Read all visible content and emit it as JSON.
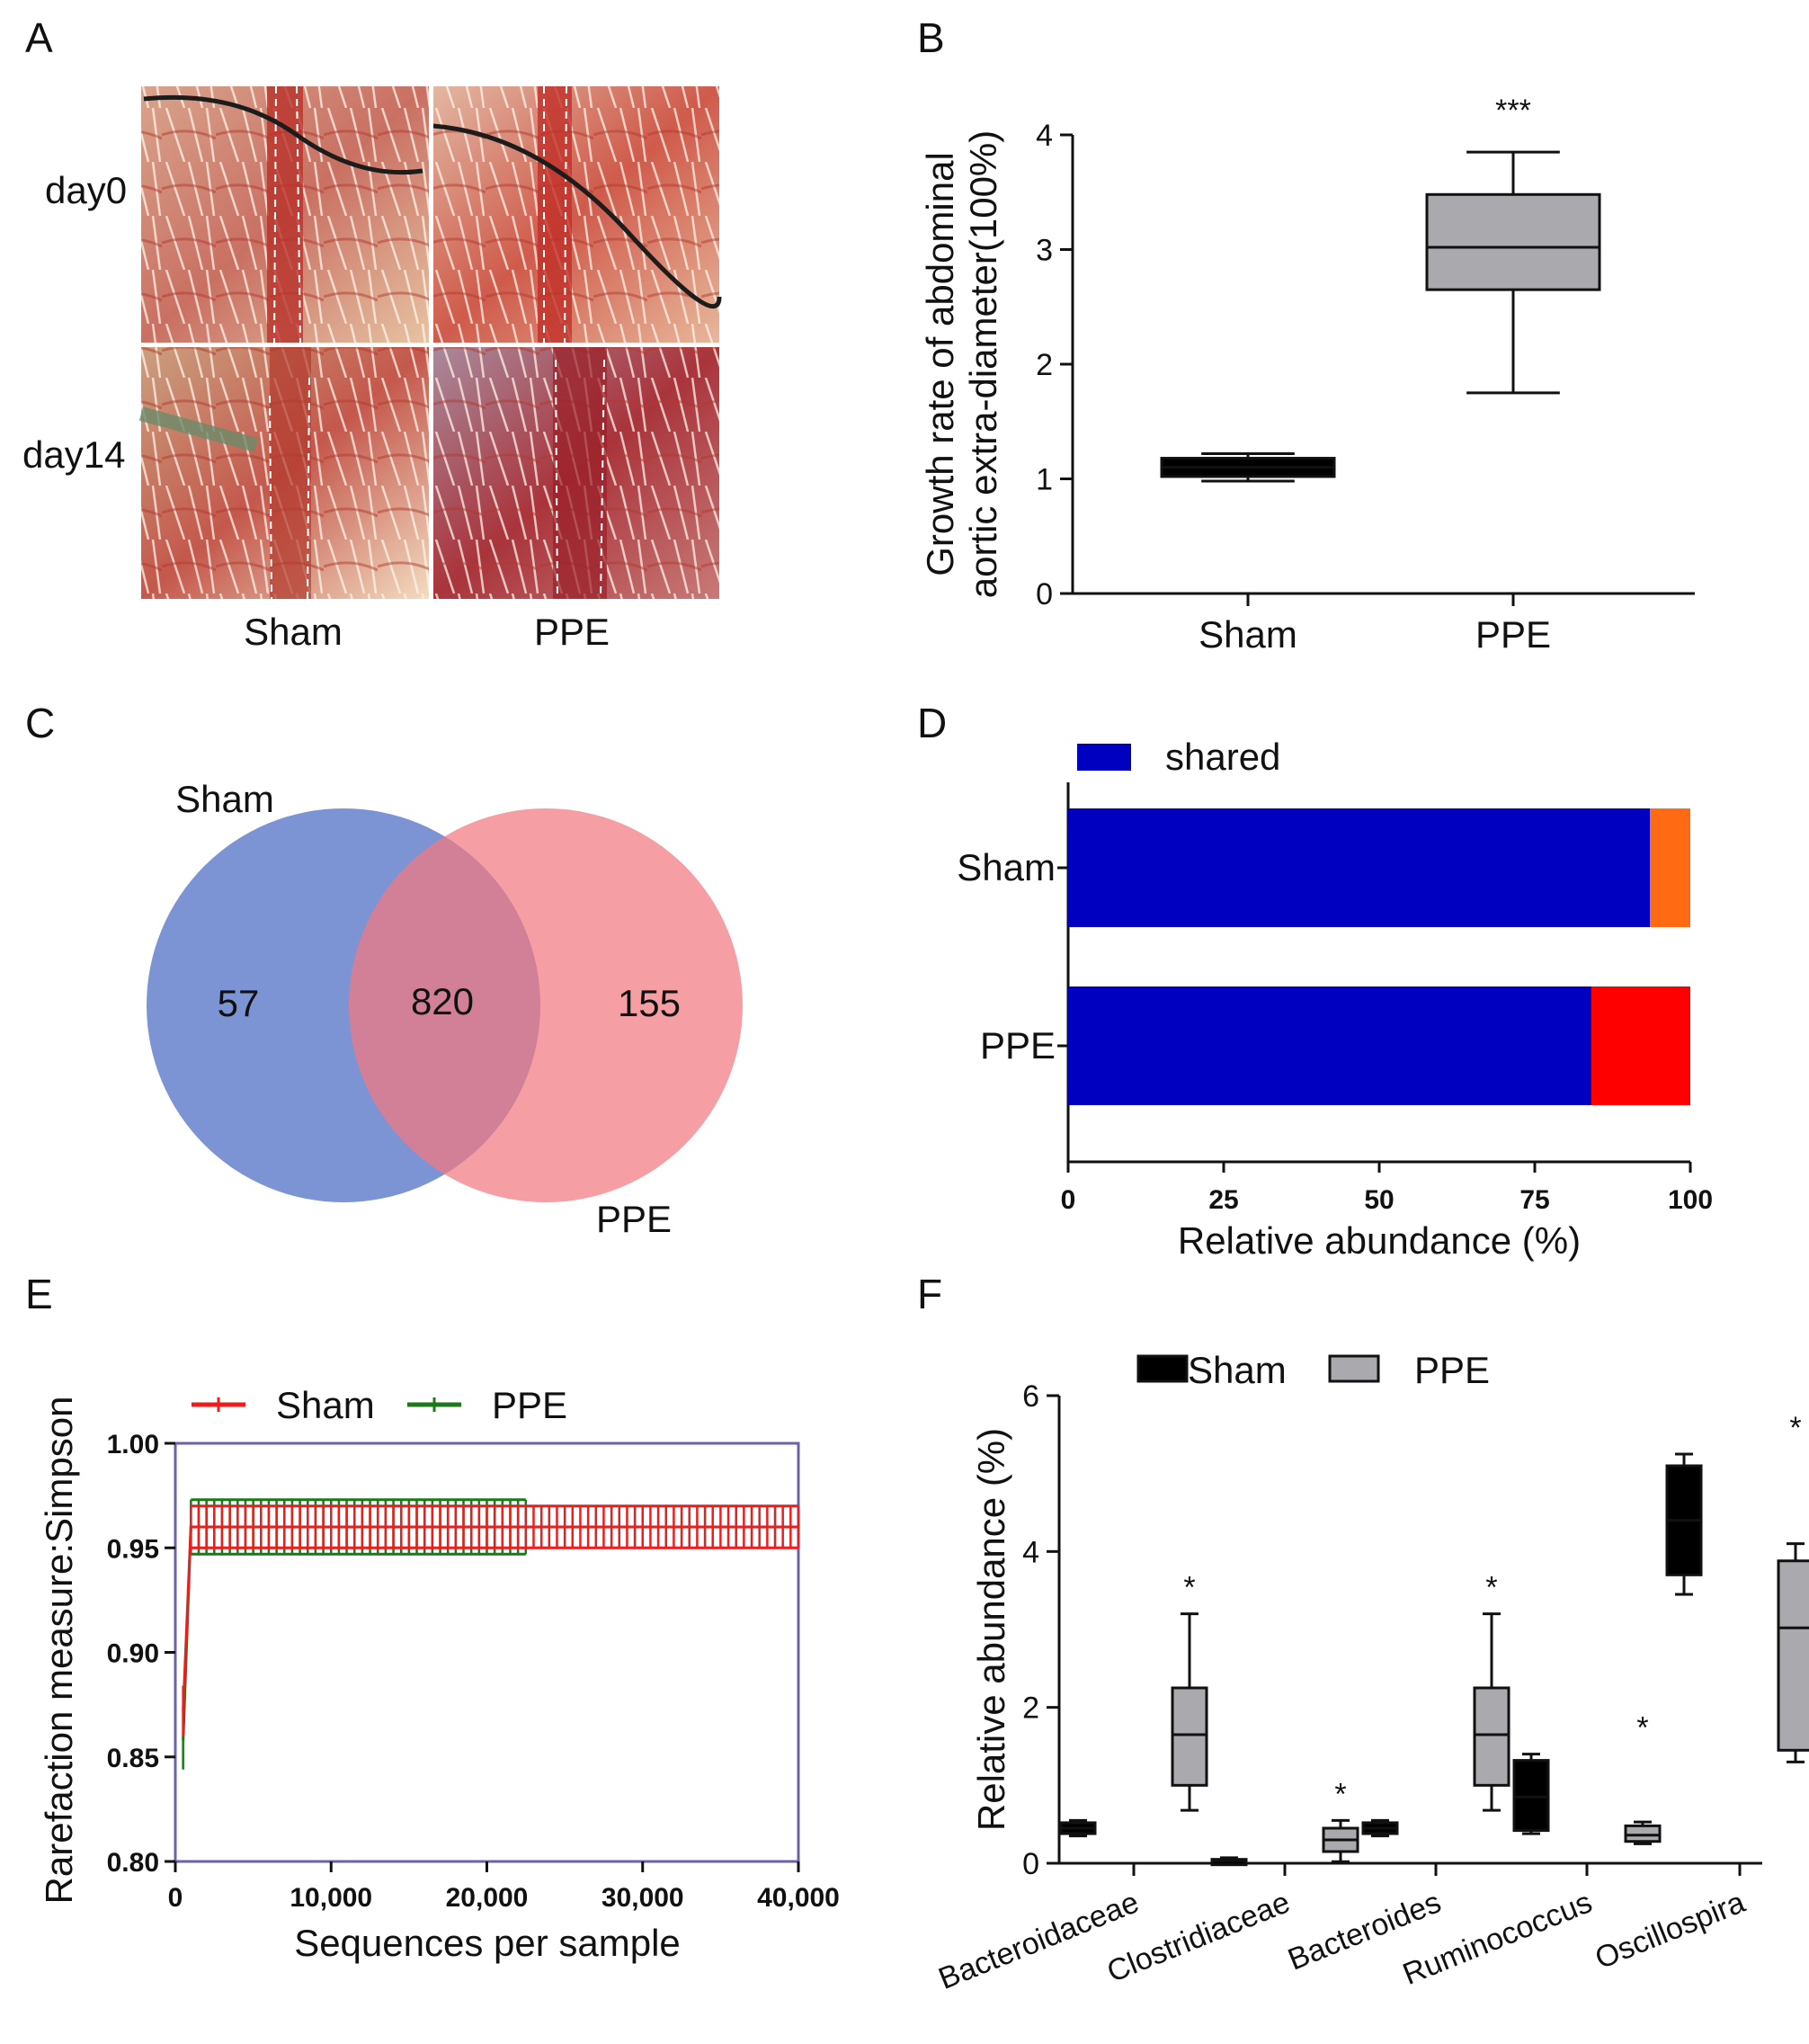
{
  "panels": {
    "A": {
      "letter": "A",
      "rows": [
        "day0",
        "day14"
      ],
      "columns": [
        "Sham",
        "PPE"
      ]
    },
    "B": {
      "letter": "B",
      "significance": "***"
    },
    "C": {
      "letter": "C",
      "set_a": "Sham",
      "set_b": "PPE",
      "only_a": "57",
      "shared": "820",
      "only_b": "155"
    },
    "D": {
      "letter": "D"
    },
    "E": {
      "letter": "E"
    },
    "F": {
      "letter": "F"
    }
  },
  "colors": {
    "box_gray": "#a9a9ae",
    "box_black": "#000000",
    "venn_blue": "#6f88cf",
    "venn_red": "#f17880",
    "bar_shared": "#0000c0",
    "bar_sham_unique": "#ff6a12",
    "bar_ppe_unique": "#ff0000",
    "rare_sham": "#ee1c1c",
    "rare_ppe": "#1a7a1a",
    "frame_e": "#6a63a8"
  },
  "chart_data": [
    {
      "panel": "B",
      "type": "box",
      "categories": [
        "Sham",
        "PPE"
      ],
      "ylabel": "Growth rate of abdominal aortic extra-diameter(100%)",
      "ylabel_lines": [
        "Growth rate of abdominal",
        "aortic extra-diameter(100%)"
      ],
      "ylim": [
        0,
        4
      ],
      "yticks": [
        0,
        1,
        2,
        3,
        4
      ],
      "boxes": [
        {
          "name": "Sham",
          "min": 0.98,
          "q1": 1.02,
          "median": 1.1,
          "q3": 1.18,
          "max": 1.22,
          "color": "#000000"
        },
        {
          "name": "PPE",
          "min": 1.75,
          "q1": 2.65,
          "median": 3.02,
          "q3": 3.48,
          "max": 3.85,
          "color": "#a9a9ae"
        }
      ],
      "annotations": [
        {
          "category": "PPE",
          "text": "***"
        }
      ]
    },
    {
      "panel": "D",
      "type": "bar",
      "orientation": "horizontal",
      "stacked": true,
      "categories": [
        "Sham",
        "PPE"
      ],
      "xlabel": "Relative abundance (%)",
      "xlim": [
        0,
        100
      ],
      "xticks": [
        0,
        25,
        50,
        75,
        100
      ],
      "legend": {
        "entries": [
          "shared"
        ],
        "placement": "top"
      },
      "series": [
        {
          "name": "shared",
          "values": [
            93.5,
            84.1
          ],
          "color": "#0000c0"
        },
        {
          "values": [
            6.5,
            15.9
          ],
          "colors": [
            "#ff6a12",
            "#ff0000"
          ]
        }
      ]
    },
    {
      "panel": "E",
      "type": "line",
      "xlabel": "Sequences per sample",
      "ylabel": "Rarefaction measure:Simpson",
      "xlim": [
        0,
        40000
      ],
      "ylim": [
        0.8,
        1.0
      ],
      "xticks": [
        "0",
        "10,000",
        "20,000",
        "30,000",
        "40,000"
      ],
      "yticks": [
        "0.80",
        "0.85",
        "0.90",
        "0.95",
        "1.00"
      ],
      "legend": {
        "entries": [
          "Sham",
          "PPE"
        ],
        "placement": "top"
      },
      "series": [
        {
          "name": "Sham",
          "color": "#ee1c1c",
          "x_max": 40000,
          "plateau": 0.96,
          "err": 0.01,
          "start_x": 500,
          "start_y": 0.872,
          "start_err": 0.012
        },
        {
          "name": "PPE",
          "color": "#1a7a1a",
          "x_max": 22500,
          "plateau": 0.96,
          "err": 0.013,
          "start_x": 500,
          "start_y": 0.858,
          "start_err": 0.014
        }
      ]
    },
    {
      "panel": "F",
      "type": "box",
      "categories": [
        "Bacteroidaceae",
        "Clostridiaceae",
        "Bacteroides",
        "Ruminococcus",
        "Oscillospira"
      ],
      "ylabel": "Relative abundance (%)",
      "ylim": [
        0,
        6
      ],
      "yticks": [
        0,
        2,
        4,
        6
      ],
      "legend": {
        "entries": [
          "Sham",
          "PPE"
        ],
        "placement": "top"
      },
      "series": [
        {
          "name": "Sham",
          "color": "#000000",
          "boxes": [
            {
              "min": 0.35,
              "q1": 0.38,
              "median": 0.45,
              "q3": 0.52,
              "max": 0.55
            },
            {
              "min": 0.0,
              "q1": 0.01,
              "median": 0.03,
              "q3": 0.05,
              "max": 0.07
            },
            {
              "min": 0.35,
              "q1": 0.38,
              "median": 0.45,
              "q3": 0.52,
              "max": 0.55
            },
            {
              "min": 0.38,
              "q1": 0.42,
              "median": 0.85,
              "q3": 1.32,
              "max": 1.4
            },
            {
              "min": 3.45,
              "q1": 3.7,
              "median": 4.4,
              "q3": 5.1,
              "max": 5.25
            }
          ]
        },
        {
          "name": "PPE",
          "color": "#a9a9ae",
          "boxes": [
            {
              "min": 0.68,
              "q1": 1.0,
              "median": 1.65,
              "q3": 2.25,
              "max": 3.2
            },
            {
              "min": 0.02,
              "q1": 0.15,
              "median": 0.3,
              "q3": 0.45,
              "max": 0.55
            },
            {
              "min": 0.68,
              "q1": 1.0,
              "median": 1.65,
              "q3": 2.25,
              "max": 3.2
            },
            {
              "min": 0.25,
              "q1": 0.28,
              "median": 0.36,
              "q3": 0.48,
              "max": 0.53
            },
            {
              "min": 1.3,
              "q1": 1.45,
              "median": 3.02,
              "q3": 3.88,
              "max": 4.1
            }
          ]
        }
      ],
      "annotations": [
        "*",
        "*",
        "*",
        "*",
        "*"
      ]
    }
  ]
}
